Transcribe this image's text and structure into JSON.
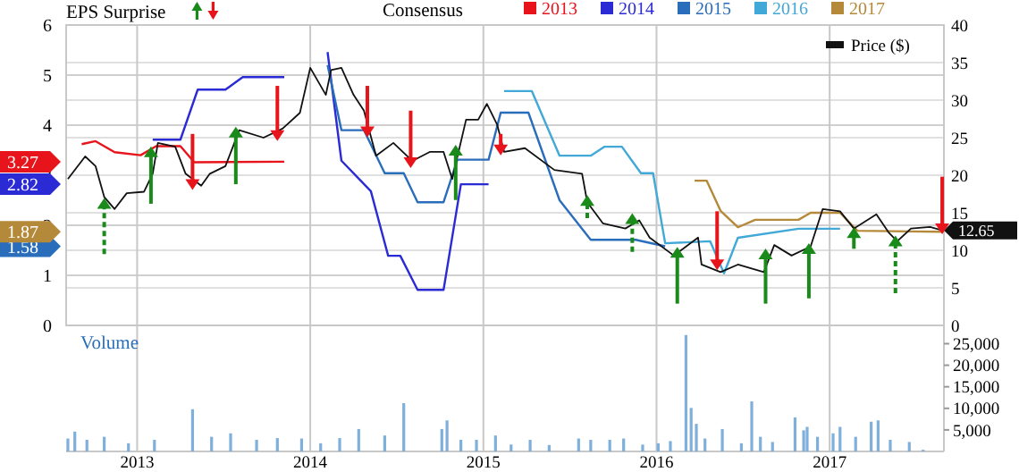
{
  "chart_data": [
    {
      "type": "line",
      "legend_title": "Consensus",
      "annotations": [
        "EPS Surprise",
        "3.27",
        "2.82",
        "1.58",
        "1.87"
      ],
      "xlim": [
        2012.59,
        2017.66
      ],
      "xticks": [
        2013,
        2014,
        2015,
        2016,
        2017
      ],
      "ylim": [
        0,
        6
      ],
      "yticks": [
        0,
        1,
        2,
        3,
        4,
        5,
        6
      ],
      "y2lim": [
        0,
        40
      ],
      "y2ticks": [
        0,
        5,
        10,
        15,
        20,
        25,
        30,
        35,
        40
      ],
      "grid": true,
      "legend": "top",
      "tick_labels": "y",
      "series": [
        {
          "name": "2013",
          "color": "#e8141b",
          "x": [
            2012.68,
            2012.76,
            2012.87,
            2013.02,
            2013.11,
            2013.25,
            2013.33,
            2013.85
          ],
          "values": [
            3.62,
            3.68,
            3.46,
            3.4,
            3.58,
            3.58,
            3.26,
            3.27
          ]
        },
        {
          "name": "2014",
          "color": "#2b2bd6",
          "x": [
            2013.09,
            2013.25,
            2013.35,
            2013.51,
            2013.61,
            2013.85,
            2013.97,
            2014.1,
            2014.18,
            2014.35,
            2014.45,
            2014.52,
            2014.62,
            2014.77,
            2014.87,
            2015.03
          ],
          "values": [
            3.71,
            3.71,
            4.71,
            4.71,
            4.96,
            4.96,
            null,
            5.46,
            3.29,
            2.68,
            1.39,
            1.39,
            0.71,
            0.71,
            2.82,
            2.82
          ]
        },
        {
          "name": "2015",
          "color": "#2a6ebb",
          "x": [
            2014.1,
            2014.18,
            2014.31,
            2014.43,
            2014.54,
            2014.62,
            2014.77,
            2014.85,
            2015.03,
            2015.1,
            2015.26,
            2015.44,
            2015.62,
            2015.88,
            2016.05
          ],
          "values": [
            5.2,
            3.9,
            3.9,
            3.04,
            3.04,
            2.46,
            2.46,
            3.31,
            3.31,
            4.25,
            4.25,
            2.5,
            1.71,
            1.71,
            1.58
          ]
        },
        {
          "name": "2016",
          "color": "#41a8d8",
          "x": [
            2015.12,
            2015.28,
            2015.44,
            2015.62,
            2015.7,
            2015.8,
            2015.91,
            2015.98,
            2016.05,
            2016.31,
            2016.39,
            2016.47,
            2016.82,
            2017.06
          ],
          "values": [
            4.68,
            4.68,
            3.39,
            3.39,
            3.57,
            3.57,
            3.04,
            3.04,
            1.64,
            1.68,
            1.04,
            1.75,
            1.93,
            1.93
          ]
        },
        {
          "name": "2017",
          "color": "#b5893a",
          "x": [
            2016.22,
            2016.29,
            2016.37,
            2016.47,
            2016.57,
            2016.82,
            2016.89,
            2017.06,
            2017.16,
            2017.65
          ],
          "values": [
            2.89,
            2.89,
            2.29,
            1.96,
            2.11,
            2.11,
            2.25,
            2.25,
            1.89,
            1.87
          ]
        },
        {
          "name": "Price ($)",
          "color": "#111111",
          "axis": "y2",
          "x": [
            2012.6,
            2012.7,
            2012.76,
            2012.81,
            2012.87,
            2012.94,
            2013.04,
            2013.09,
            2013.12,
            2013.22,
            2013.28,
            2013.37,
            2013.42,
            2013.51,
            2013.59,
            2013.73,
            2013.84,
            2013.94,
            2014.0,
            2014.09,
            2014.12,
            2014.18,
            2014.25,
            2014.31,
            2014.38,
            2014.48,
            2014.59,
            2014.69,
            2014.77,
            2014.82,
            2014.9,
            2014.97,
            2015.02,
            2015.08,
            2015.12,
            2015.24,
            2015.41,
            2015.57,
            2015.6,
            2015.69,
            2015.82,
            2015.9,
            2015.96,
            2016.1,
            2016.24,
            2016.26,
            2016.37,
            2016.47,
            2016.62,
            2016.68,
            2016.78,
            2016.89,
            2016.96,
            2017.06,
            2017.14,
            2017.27,
            2017.34,
            2017.39,
            2017.47,
            2017.58,
            2017.65
          ],
          "values": [
            19.5,
            22.5,
            21.2,
            17.1,
            15.5,
            17.6,
            17.8,
            20.2,
            24.3,
            23.8,
            20.2,
            18.6,
            20.2,
            21.2,
            26.0,
            25.0,
            26.2,
            28.3,
            34.3,
            30.7,
            34.0,
            34.3,
            30.7,
            28.6,
            22.6,
            24.3,
            21.9,
            23.1,
            23.1,
            19.5,
            27.4,
            27.4,
            29.5,
            26.7,
            23.1,
            23.6,
            20.7,
            20.2,
            16.4,
            13.6,
            12.9,
            14.0,
            11.7,
            9.3,
            11.7,
            8.1,
            7.1,
            8.1,
            7.1,
            10.7,
            9.3,
            10.5,
            15.5,
            15.2,
            12.9,
            14.8,
            12.4,
            11.2,
            12.9,
            13.1,
            12.65
          ],
          "value_labels": [
            null,
            null,
            null,
            null,
            null,
            null,
            null,
            null,
            null,
            null,
            null,
            null,
            null,
            null,
            null,
            null,
            null,
            null,
            null,
            null,
            null,
            null,
            null,
            null,
            null,
            null,
            null,
            null,
            null,
            null,
            null,
            null,
            null,
            null,
            null,
            null,
            null,
            null,
            null,
            null,
            null,
            null,
            null,
            null,
            null,
            null,
            null,
            null,
            null,
            null,
            null,
            null,
            null,
            null,
            null,
            null,
            null,
            null,
            null,
            null,
            "12.65"
          ]
        },
        {
          "type": "scatter",
          "marker": "triangle",
          "color": "#1a8a1a",
          "axis": "y2",
          "x": [
            2013.08,
            2013.57,
            2014.84,
            2016.12,
            2016.63,
            2016.88,
            2017.14
          ],
          "values": [
            22.9,
            25.5,
            23.1,
            9.5,
            9.3,
            10.0,
            12.1
          ],
          "errors": [
            [
              16.2,
              22.9
            ],
            [
              18.8,
              25.5
            ],
            [
              16.7,
              23.1
            ],
            [
              2.9,
              9.5
            ],
            [
              2.9,
              9.3
            ],
            [
              3.6,
              10.0
            ],
            [
              10.2,
              12.1
            ]
          ]
        },
        {
          "type": "scatter",
          "marker": "triangle",
          "line_style": "dashed",
          "color": "#1a8a1a",
          "axis": "y2",
          "x": [
            2012.81,
            2015.6,
            2015.86,
            2017.38
          ],
          "values": [
            16.0,
            16.4,
            14.0,
            11.0
          ],
          "errors": [
            [
              9.5,
              16.0
            ],
            [
              14.3,
              16.4
            ],
            [
              9.8,
              14.0
            ],
            [
              4.3,
              11.0
            ]
          ]
        },
        {
          "type": "scatter",
          "marker": "triangle",
          "color": "#e8141b",
          "axis": "y2",
          "x": [
            2013.32,
            2013.81,
            2014.33,
            2014.58,
            2015.1,
            2016.35,
            2017.65
          ],
          "values": [
            19.0,
            25.5,
            26.0,
            21.9,
            23.6,
            8.3,
            13.1
          ],
          "errors": [
            [
              19.0,
              25.5
            ],
            [
              25.5,
              31.9
            ],
            [
              26.0,
              31.9
            ],
            [
              21.9,
              28.6
            ],
            [
              23.6,
              25.5
            ],
            [
              8.3,
              15.2
            ],
            [
              13.1,
              19.8
            ]
          ]
        }
      ]
    },
    {
      "type": "bar",
      "ylabel": "Volume",
      "color": "#7fb0dc",
      "xlim": [
        2012.59,
        2017.66
      ],
      "xticks": [
        2013,
        2014,
        2015,
        2016,
        2017
      ],
      "ylim": [
        0,
        28000
      ],
      "yticks": [
        {
          "value": 5000,
          "label": "5,000"
        },
        {
          "value": 10000,
          "label": "10,000"
        },
        {
          "value": 15000,
          "label": "15,000"
        },
        {
          "value": 20000,
          "label": "20,000"
        },
        {
          "value": 25000,
          "label": "25,000"
        }
      ],
      "grid": "x",
      "x": [
        2012.6,
        2012.64,
        2012.71,
        2012.81,
        2012.95,
        2013.1,
        2013.32,
        2013.43,
        2013.54,
        2013.69,
        2013.81,
        2013.95,
        2014.06,
        2014.17,
        2014.28,
        2014.43,
        2014.54,
        2014.76,
        2014.79,
        2014.87,
        2014.96,
        2015.07,
        2015.16,
        2015.27,
        2015.38,
        2015.55,
        2015.62,
        2015.73,
        2015.81,
        2015.92,
        2016.01,
        2016.08,
        2016.17,
        2016.2,
        2016.23,
        2016.28,
        2016.38,
        2016.49,
        2016.55,
        2016.6,
        2016.67,
        2016.8,
        2016.85,
        2016.87,
        2016.93,
        2017.02,
        2017.06,
        2017.15,
        2017.24,
        2017.28,
        2017.35,
        2017.46,
        2017.54
      ],
      "values": [
        3000,
        4600,
        2700,
        3400,
        1900,
        2700,
        9800,
        3400,
        4200,
        2700,
        3100,
        3000,
        1900,
        3100,
        5200,
        3700,
        11200,
        5200,
        7200,
        2700,
        2700,
        3700,
        1600,
        2700,
        1500,
        3000,
        2700,
        2700,
        3000,
        1600,
        1900,
        2400,
        27000,
        10100,
        6400,
        3000,
        5200,
        1900,
        11600,
        3400,
        2200,
        7900,
        4900,
        5700,
        3400,
        4200,
        5700,
        3400,
        6900,
        7200,
        2700,
        2200,
        400
      ]
    }
  ]
}
